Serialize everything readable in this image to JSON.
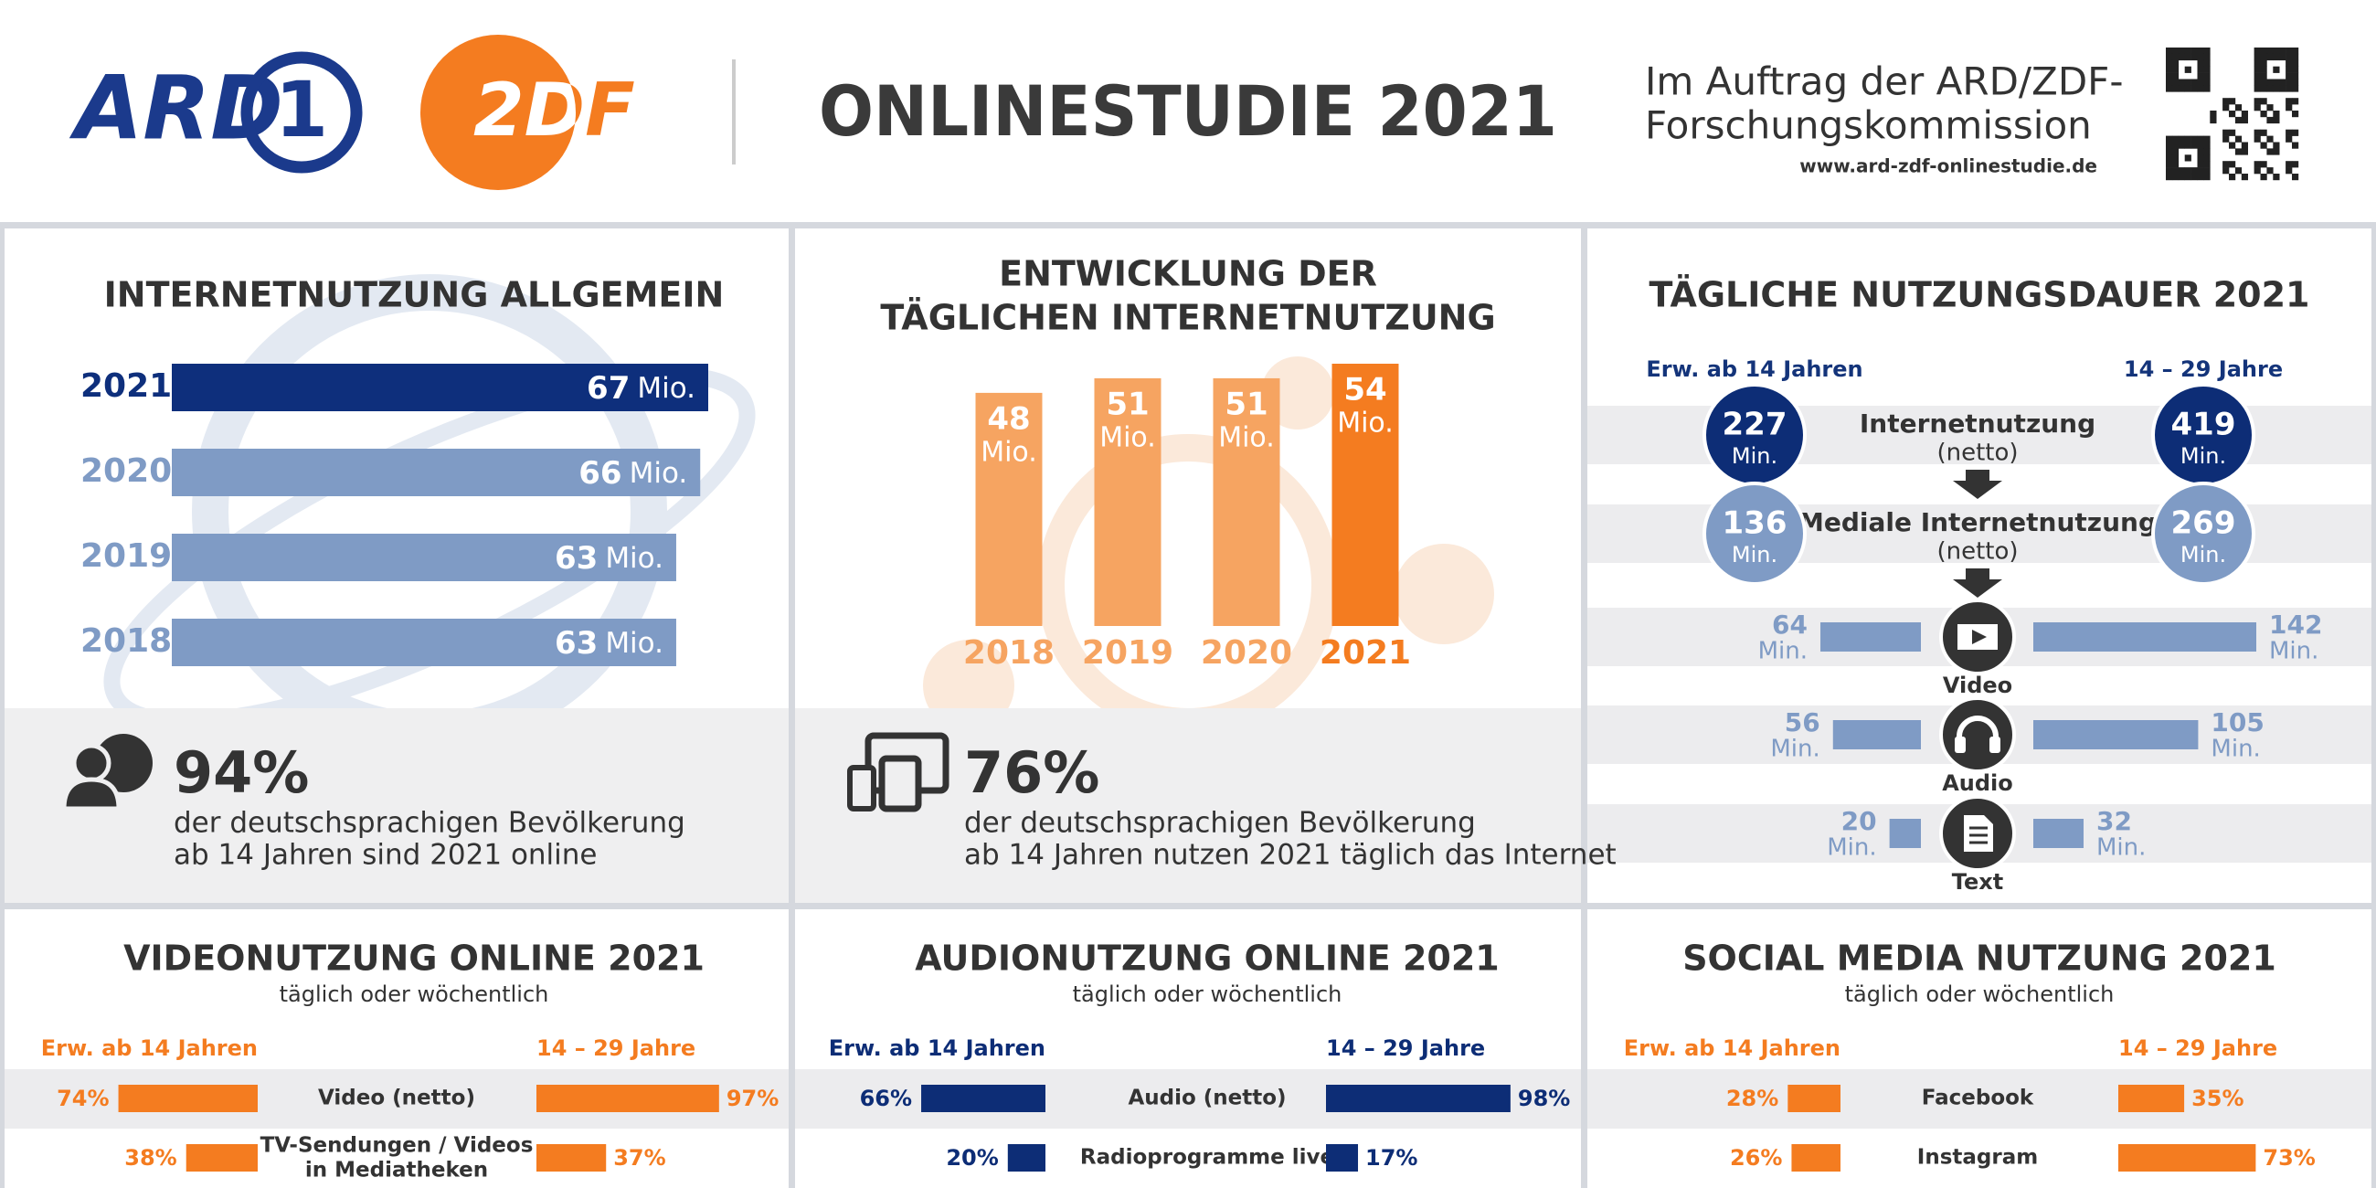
{
  "header": {
    "logo_ard": "ARD",
    "logo_ard_badge": "1",
    "logo_zdf": "2DF",
    "title": "ONLINESTUDIE 2021",
    "commission": [
      "Im Auftrag der ARD/ZDF-",
      "Forschungskommission"
    ],
    "url": "www.ard-zdf-onlinestudie.de"
  },
  "chart_data": [
    {
      "type": "hbar",
      "title": "INTERNETNUTZUNG ALLGEMEIN",
      "categories": [
        "2021",
        "2020",
        "2019",
        "2018"
      ],
      "values": [
        67,
        66,
        63,
        63
      ],
      "unit": "Mio.",
      "colors": [
        "#0e2f7c",
        "#7f9bc5",
        "#7f9bc5",
        "#7f9bc5"
      ]
    },
    {
      "type": "bar",
      "title": [
        "ENTWICKLUNG DER",
        "TÄGLICHEN INTERNETNUTZUNG"
      ],
      "categories": [
        "2018",
        "2019",
        "2020",
        "2021"
      ],
      "values": [
        48,
        51,
        51,
        54
      ],
      "unit": "Mio.",
      "colors": [
        "#f6a461",
        "#f6a461",
        "#f6a461",
        "#f47c20"
      ]
    },
    {
      "type": "duration",
      "title": "TÄGLICHE NUTZUNGSDAUER 2021",
      "categories": [
        "Internetnutzung",
        "Mediale Internetnutzung",
        "Video",
        "Audio",
        "Text"
      ],
      "category_notes": [
        "(netto)",
        "(netto)",
        null,
        null,
        null
      ],
      "unit": "Min.",
      "series": [
        {
          "name": "Erw. ab 14 Jahren",
          "values": [
            227,
            136,
            64,
            56,
            20
          ]
        },
        {
          "name": "14 – 29 Jahre",
          "values": [
            419,
            269,
            142,
            105,
            32
          ]
        }
      ],
      "colors": [
        "#0d2d76",
        "#7f9bc5"
      ]
    },
    {
      "type": "butterfly",
      "title": "VIDEONUTZUNG ONLINE 2021",
      "subtitle": "täglich oder wöchentlich",
      "categories": [
        "Video (netto)",
        "TV-Sendungen / Videos\nin Mediatheken"
      ],
      "series": [
        {
          "name": "Erw. ab 14 Jahren",
          "color": "#f47c20",
          "values": [
            74,
            38
          ],
          "value_labels": [
            "74%",
            "38%"
          ]
        },
        {
          "name": "14 – 29 Jahre",
          "color": "#f47c20",
          "values": [
            97,
            37
          ],
          "value_labels": [
            "97%",
            "37%"
          ]
        }
      ]
    },
    {
      "type": "butterfly",
      "title": "AUDIONUTZUNG ONLINE 2021",
      "subtitle": "täglich oder wöchentlich",
      "categories": [
        "Audio (netto)",
        "Radioprogramme live"
      ],
      "series": [
        {
          "name": "Erw. ab 14 Jahren",
          "color": "#0d2d76",
          "values": [
            66,
            20
          ],
          "value_labels": [
            "66%",
            "20%"
          ]
        },
        {
          "name": "14 – 29 Jahre",
          "color": "#0d2d76",
          "values": [
            98,
            17
          ],
          "value_labels": [
            "98%",
            "17%"
          ]
        }
      ]
    },
    {
      "type": "butterfly",
      "title": "SOCIAL MEDIA NUTZUNG 2021",
      "subtitle": "täglich oder wöchentlich",
      "categories": [
        "Facebook",
        "Instagram"
      ],
      "series": [
        {
          "name": "Erw. ab 14 Jahren",
          "color": "#f47c20",
          "values": [
            28,
            26
          ],
          "value_labels": [
            "28%",
            "26%"
          ]
        },
        {
          "name": "14 – 29 Jahre",
          "color": "#f47c20",
          "values": [
            35,
            73
          ],
          "value_labels": [
            "35%",
            "73%"
          ]
        }
      ]
    }
  ],
  "stats": [
    {
      "value": "94%",
      "text": [
        "der deutschsprachigen Bevölkerung",
        "ab 14 Jahren sind 2021 online"
      ]
    },
    {
      "value": "76%",
      "text": [
        "der deutschsprachigen Bevölkerung",
        "ab 14 Jahren nutzen 2021 täglich das Internet"
      ]
    }
  ]
}
